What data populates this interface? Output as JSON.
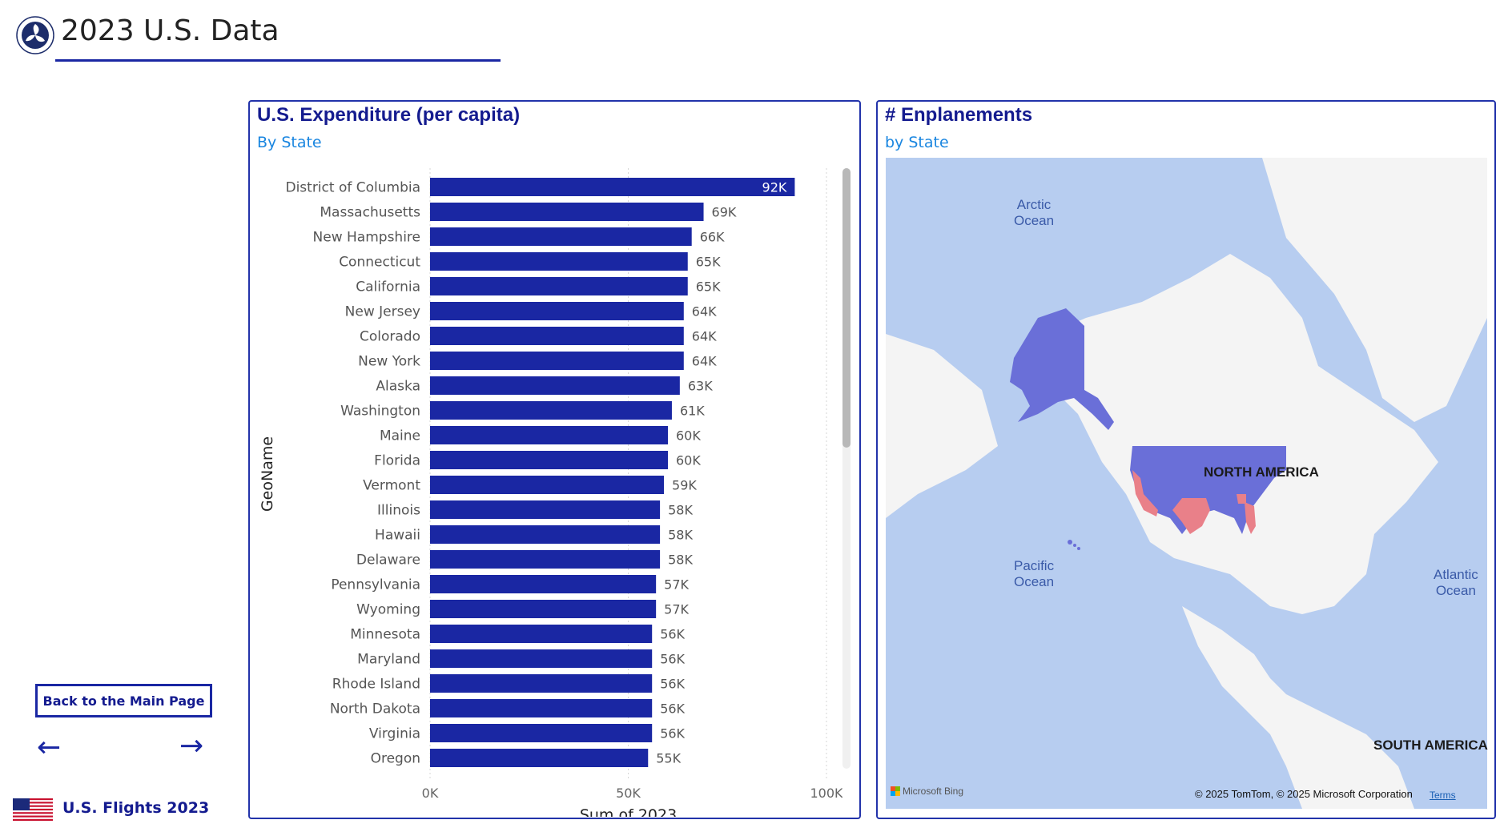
{
  "header": {
    "title": "2023 U.S. Data",
    "logo_icon": "dot-seal-logo-icon"
  },
  "expenditure_panel": {
    "title": "U.S. Expenditure (per capita)",
    "subtitle": "By State"
  },
  "enplanements_panel": {
    "title": "# Enplanements",
    "subtitle": "by State",
    "map": {
      "labels": {
        "arctic": "Arctic\nOcean",
        "pacific": "Pacific\nOcean",
        "atlantic": "Atlantic\nOcean",
        "north_america": "NORTH AMERICA",
        "south_america": "SOUTH AMERICA"
      },
      "attribution": "Microsoft Bing",
      "copyright": "© 2025 TomTom, © 2025 Microsoft Corporation",
      "terms": "Terms",
      "colors": {
        "water": "#b7cdf0",
        "land": "#f4f4f4",
        "state_default": "#6a6fd8",
        "state_high": "#e98089"
      }
    }
  },
  "chart_data": {
    "type": "bar",
    "orientation": "horizontal",
    "title": "",
    "xlabel": "Sum of 2023",
    "ylabel": "GeoName",
    "xlim": [
      0,
      100000
    ],
    "xticks": [
      "0K",
      "50K",
      "100K"
    ],
    "categories": [
      "District of Columbia",
      "Massachusetts",
      "New Hampshire",
      "Connecticut",
      "California",
      "New Jersey",
      "Colorado",
      "New York",
      "Alaska",
      "Washington",
      "Maine",
      "Florida",
      "Vermont",
      "Illinois",
      "Hawaii",
      "Delaware",
      "Pennsylvania",
      "Wyoming",
      "Minnesota",
      "Maryland",
      "Rhode Island",
      "North Dakota",
      "Virginia",
      "Oregon"
    ],
    "values": [
      92000,
      69000,
      66000,
      65000,
      65000,
      64000,
      64000,
      64000,
      63000,
      61000,
      60000,
      60000,
      59000,
      58000,
      58000,
      58000,
      57000,
      57000,
      56000,
      56000,
      56000,
      56000,
      56000,
      55000
    ],
    "value_labels": [
      "92K",
      "69K",
      "66K",
      "65K",
      "65K",
      "64K",
      "64K",
      "64K",
      "63K",
      "61K",
      "60K",
      "60K",
      "59K",
      "58K",
      "58K",
      "58K",
      "57K",
      "57K",
      "56K",
      "56K",
      "56K",
      "56K",
      "56K",
      "55K"
    ],
    "bar_color": "#1a27a3",
    "grid": true
  },
  "nav": {
    "main_page_button": "Back to the Main Page",
    "back_icon": "arrow-left-icon",
    "forward_icon": "arrow-right-icon"
  },
  "footer": {
    "label": "U.S. Flights 2023",
    "flag_icon": "us-flag-icon"
  }
}
